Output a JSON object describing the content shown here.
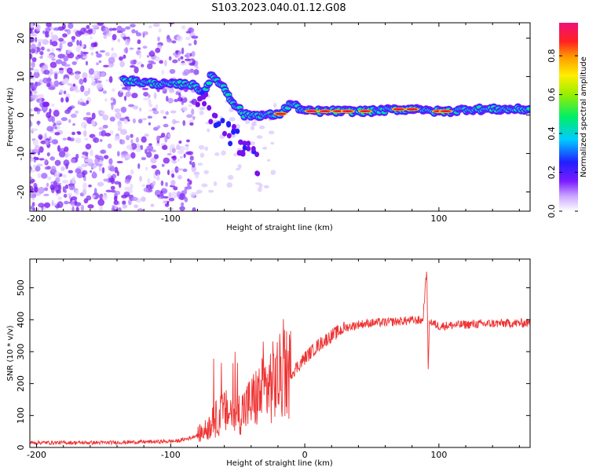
{
  "title": "S103.2023.040.01.12.G08",
  "colors": {
    "snr_line": "#ee3333",
    "ridge_core": "#ee1133"
  },
  "chart_data": [
    {
      "type": "heatmap",
      "xlabel": "Height of straight line (km)",
      "ylabel": "Frequency (Hz)",
      "xlim": [
        -205,
        168
      ],
      "ylim": [
        -25,
        24
      ],
      "xticks": [
        -200,
        -100,
        0,
        100
      ],
      "xtick_labels": [
        "-200",
        "-100",
        "",
        "100"
      ],
      "yticks": [
        -20,
        -10,
        0,
        10,
        20
      ],
      "ytick_labels": [
        "-20",
        "-10",
        "0",
        "10",
        "20"
      ],
      "ridge": {
        "x": [
          -135,
          -120,
          -105,
          -95,
          -85,
          -80,
          -75,
          -70,
          -65,
          -60,
          -55,
          -50,
          -45,
          -40,
          -30,
          -20,
          -10,
          0,
          10,
          30,
          50,
          70,
          80,
          85,
          90,
          100,
          110,
          120,
          140,
          168
        ],
        "y": [
          9,
          8.5,
          8,
          8,
          8,
          7,
          6,
          10,
          9,
          7,
          4,
          2,
          0,
          0,
          0,
          0,
          3,
          1,
          1,
          1,
          1,
          1.5,
          1.5,
          2,
          1,
          1,
          1,
          1.5,
          1.5,
          1.5
        ]
      },
      "colorbar": {
        "label": "Normalized spectral amplitude",
        "ticks": [
          0,
          0.2,
          0.4,
          0.6,
          0.8
        ],
        "tick_labels": [
          "0.0",
          "0.2",
          "0.4",
          "0.6",
          "0.8"
        ],
        "range": [
          0,
          0.97
        ]
      }
    },
    {
      "type": "line",
      "xlabel": "Height of straight line (km)",
      "ylabel": "SNR (10 * v/v)",
      "xlim": [
        -205,
        168
      ],
      "ylim": [
        0,
        590
      ],
      "xticks": [
        -200,
        -100,
        0,
        100
      ],
      "xtick_labels": [
        "-200",
        "-100",
        "0",
        "100"
      ],
      "yticks": [
        0,
        100,
        200,
        300,
        400,
        500
      ],
      "ytick_labels": [
        "0",
        "100",
        "200",
        "300",
        "400",
        "500"
      ],
      "series": [
        {
          "x": [
            -205,
            -150,
            -110,
            -95,
            -85,
            -75,
            -70,
            -65,
            -60,
            -55,
            -50,
            -45,
            -40,
            -35,
            -30,
            -25,
            -20,
            -15,
            -10,
            -5,
            0,
            5,
            10,
            20,
            30,
            40,
            50,
            60,
            70,
            80,
            88,
            91,
            92,
            93,
            95,
            100,
            120,
            140,
            168
          ],
          "y": [
            15,
            15,
            18,
            20,
            30,
            50,
            70,
            95,
            110,
            110,
            105,
            120,
            140,
            160,
            180,
            200,
            215,
            225,
            235,
            255,
            280,
            300,
            320,
            350,
            375,
            385,
            390,
            392,
            395,
            398,
            398,
            560,
            240,
            400,
            390,
            380,
            385,
            388,
            390
          ]
        }
      ]
    }
  ]
}
